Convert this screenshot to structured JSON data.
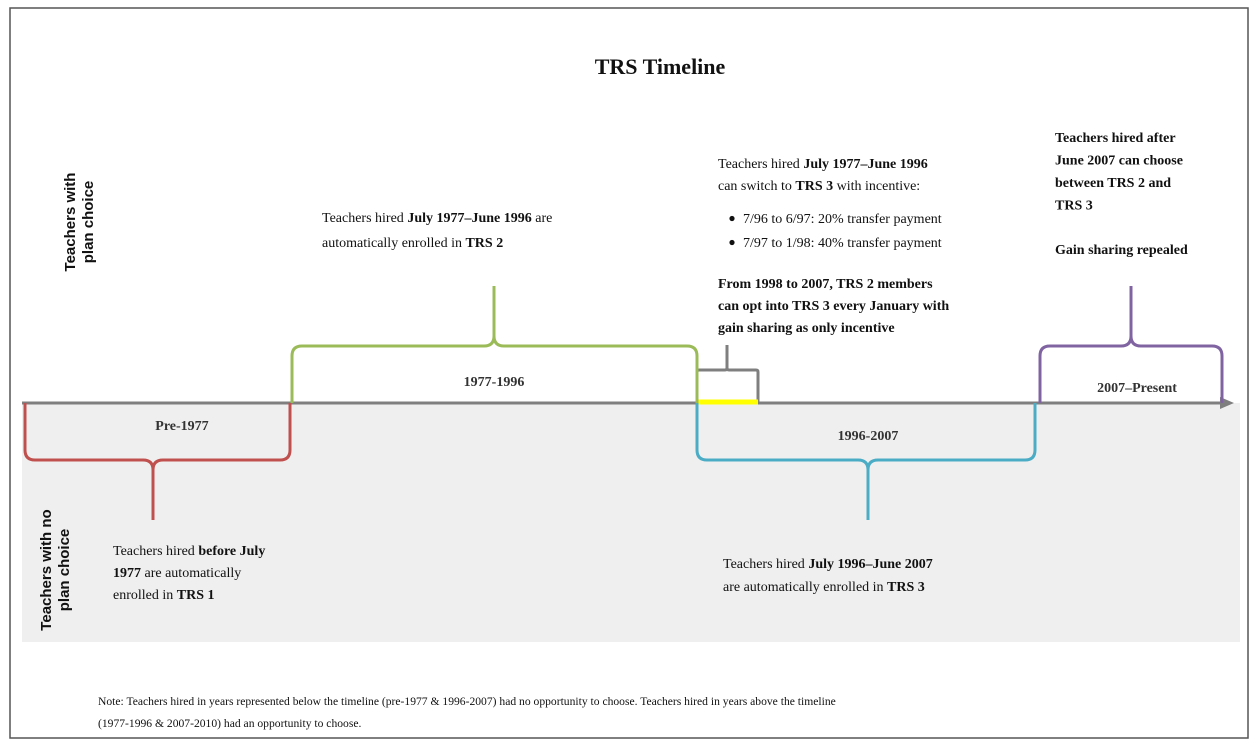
{
  "title": "TRS Timeline",
  "side_labels": {
    "top": [
      "Teachers with",
      "plan choice"
    ],
    "bottom": [
      "Teachers with no",
      "plan choice"
    ]
  },
  "periods": [
    {
      "label": "Pre-1977",
      "color": "#c0504d"
    },
    {
      "label": "1977-1996",
      "color": "#9bbb59"
    },
    {
      "label": "1996-2007",
      "color": "#4bacc6"
    },
    {
      "label": "2007–Present",
      "color": "#8064a2"
    }
  ],
  "blocks": [
    {
      "lines": [
        [
          {
            "t": "Teachers hired ",
            "b": false
          },
          {
            "t": "before July",
            "b": true
          }
        ],
        [
          {
            "t": "1977",
            "b": true
          },
          {
            "t": " are  automatically",
            "b": false
          }
        ],
        [
          {
            "t": "enrolled in ",
            "b": false
          },
          {
            "t": "TRS 1",
            "b": true
          }
        ]
      ]
    },
    {
      "lines": [
        [
          {
            "t": "Teachers hired ",
            "b": false
          },
          {
            "t": "July 1977–June 1996",
            "b": true
          },
          {
            "t": " are",
            "b": false
          }
        ],
        [
          {
            "t": "automatically enrolled in ",
            "b": false
          },
          {
            "t": "TRS 2",
            "b": true
          }
        ]
      ]
    },
    {
      "lines": [
        [
          {
            "t": "Teachers hired ",
            "b": false
          },
          {
            "t": "July 1977–June 1996",
            "b": true
          }
        ],
        [
          {
            "t": "can switch to ",
            "b": false
          },
          {
            "t": "TRS 3",
            "b": true
          },
          {
            "t": " with incentive:",
            "b": false
          }
        ]
      ]
    },
    {
      "bullets": [
        "7/96 to 6/97: 20% transfer payment",
        "7/97 to 1/98: 40% transfer payment"
      ]
    },
    {
      "lines": [
        [
          {
            "t": "From 1998 to 2007, TRS 2 members",
            "b": true
          }
        ],
        [
          {
            "t": "can opt into TRS 3 every January with",
            "b": true
          }
        ],
        [
          {
            "t": "gain sharing as only incentive",
            "b": true
          }
        ]
      ]
    },
    {
      "lines": [
        [
          {
            "t": "Teachers hired ",
            "b": false
          },
          {
            "t": "July 1996–June 2007",
            "b": true
          }
        ],
        [
          {
            "t": "are automatically enrolled in ",
            "b": false
          },
          {
            "t": "TRS 3",
            "b": true
          }
        ]
      ]
    },
    {
      "lines": [
        [
          {
            "t": "Teachers hired after",
            "b": true
          }
        ],
        [
          {
            "t": "June 2007 can choose",
            "b": true
          }
        ],
        [
          {
            "t": "between TRS 2 and",
            "b": true
          }
        ],
        [
          {
            "t": "TRS 3",
            "b": true
          }
        ]
      ]
    },
    {
      "lines": [
        [
          {
            "t": "Gain sharing repealed",
            "b": true
          }
        ]
      ]
    }
  ],
  "note": [
    "Note: Teachers hired in years represented below the timeline (pre-1977 & 1996-2007) had no opportunity to choose. Teachers hired in years above the timeline",
    "(1977-1996 & 2007-2010) had an opportunity to choose."
  ]
}
